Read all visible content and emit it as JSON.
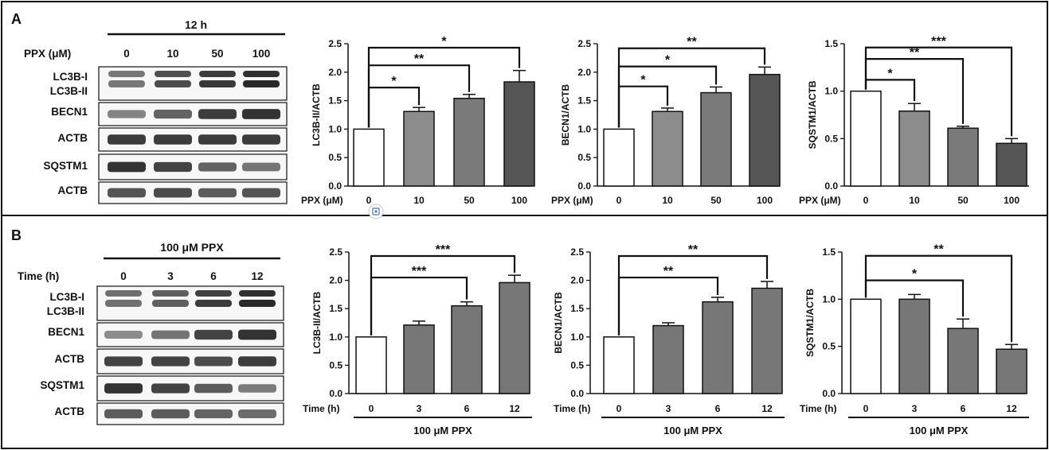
{
  "panels": [
    {
      "letter": "A",
      "header": "12 h",
      "row_title": "PPX (μM)",
      "lanes": [
        "0",
        "10",
        "50",
        "100"
      ],
      "blots": [
        {
          "label1": "LC3B-I",
          "label2": "LC3B-II",
          "kind": "lc3",
          "intensity": [
            0.55,
            0.8,
            0.92,
            1.0
          ]
        },
        {
          "label1": "BECN1",
          "kind": "single",
          "intensity": [
            0.45,
            0.65,
            0.9,
            0.95
          ]
        },
        {
          "label1": "ACTB",
          "kind": "single",
          "intensity": [
            0.9,
            0.9,
            0.9,
            0.9
          ]
        },
        {
          "label1": "SQSTM1",
          "kind": "single",
          "intensity": [
            0.95,
            0.85,
            0.65,
            0.55
          ]
        },
        {
          "label1": "ACTB",
          "kind": "single",
          "intensity": [
            0.75,
            0.8,
            0.7,
            0.75
          ]
        }
      ]
    },
    {
      "letter": "B",
      "header": "100 μM  PPX",
      "row_title": "Time (h)",
      "lanes": [
        "0",
        "3",
        "6",
        "12"
      ],
      "blots": [
        {
          "label1": "LC3B-I",
          "label2": "LC3B-II",
          "kind": "lc3",
          "intensity": [
            0.6,
            0.7,
            0.9,
            1.0
          ]
        },
        {
          "label1": "BECN1",
          "kind": "single",
          "intensity": [
            0.4,
            0.55,
            0.85,
            0.95
          ]
        },
        {
          "label1": "ACTB",
          "kind": "single",
          "intensity": [
            0.85,
            0.85,
            0.8,
            0.9
          ]
        },
        {
          "label1": "SQSTM1",
          "kind": "single",
          "intensity": [
            0.95,
            0.85,
            0.7,
            0.5
          ]
        },
        {
          "label1": "ACTB",
          "kind": "single",
          "intensity": [
            0.7,
            0.7,
            0.65,
            0.6
          ]
        }
      ]
    }
  ],
  "chart_data": [
    {
      "type": "bar",
      "panel": "A",
      "ylabel": "LC3B-II/ACTB",
      "xlabel_prefix": "PPX (μM)",
      "categories": [
        "0",
        "10",
        "50",
        "100"
      ],
      "values": [
        1.0,
        1.31,
        1.54,
        1.83
      ],
      "errors": [
        0,
        0.07,
        0.07,
        0.2
      ],
      "ylim": [
        0,
        2.5
      ],
      "yticks": [
        "0.0",
        "0.5",
        "1.0",
        "1.5",
        "2.0",
        "2.5"
      ],
      "bracket_label": "",
      "significance": [
        {
          "to": 1,
          "label": "*",
          "y": 1.73
        },
        {
          "to": 2,
          "label": "**",
          "y": 2.12
        },
        {
          "to": 3,
          "label": "*",
          "y": 2.43
        }
      ]
    },
    {
      "type": "bar",
      "panel": "A",
      "ylabel": "BECN1/ACTB",
      "xlabel_prefix": "PPX (μM)",
      "categories": [
        "0",
        "10",
        "50",
        "100"
      ],
      "values": [
        1.0,
        1.31,
        1.64,
        1.96
      ],
      "errors": [
        0,
        0.06,
        0.1,
        0.13
      ],
      "ylim": [
        0,
        2.5
      ],
      "yticks": [
        "0.0",
        "0.5",
        "1.0",
        "1.5",
        "2.0",
        "2.5"
      ],
      "bracket_label": "",
      "significance": [
        {
          "to": 1,
          "label": "*",
          "y": 1.75
        },
        {
          "to": 2,
          "label": "*",
          "y": 2.1
        },
        {
          "to": 3,
          "label": "**",
          "y": 2.42
        }
      ]
    },
    {
      "type": "bar",
      "panel": "A",
      "ylabel": "SQSTM1/ACTB",
      "xlabel_prefix": "PPX (μM)",
      "categories": [
        "0",
        "10",
        "50",
        "100"
      ],
      "values": [
        1.0,
        0.79,
        0.61,
        0.45
      ],
      "errors": [
        0,
        0.08,
        0.02,
        0.05
      ],
      "ylim": [
        0,
        1.5
      ],
      "yticks": [
        "0.0",
        "0.5",
        "1.0",
        "1.5"
      ],
      "bracket_label": "",
      "significance": [
        {
          "to": 1,
          "label": "*",
          "y": 1.12
        },
        {
          "to": 2,
          "label": "**",
          "y": 1.34
        },
        {
          "to": 3,
          "label": "***",
          "y": 1.46
        }
      ]
    },
    {
      "type": "bar",
      "panel": "B",
      "ylabel": "LC3B-II/ACTB",
      "xlabel_prefix": "Time (h)",
      "categories": [
        "0",
        "3",
        "6",
        "12"
      ],
      "values": [
        1.0,
        1.21,
        1.55,
        1.96
      ],
      "errors": [
        0,
        0.07,
        0.07,
        0.13
      ],
      "ylim": [
        0,
        2.5
      ],
      "yticks": [
        "0.0",
        "0.5",
        "1.0",
        "1.5",
        "2.0",
        "2.5"
      ],
      "bracket_label": "100 μM  PPX",
      "significance": [
        {
          "to": 2,
          "label": "***",
          "y": 2.05
        },
        {
          "to": 3,
          "label": "***",
          "y": 2.43
        }
      ]
    },
    {
      "type": "bar",
      "panel": "B",
      "ylabel": "BECN1/ACTB",
      "xlabel_prefix": "Time (h)",
      "categories": [
        "0",
        "3",
        "6",
        "12"
      ],
      "values": [
        1.0,
        1.2,
        1.62,
        1.86
      ],
      "errors": [
        0,
        0.05,
        0.08,
        0.12
      ],
      "ylim": [
        0,
        2.5
      ],
      "yticks": [
        "0.0",
        "0.5",
        "1.0",
        "1.5",
        "2.0",
        "2.5"
      ],
      "bracket_label": "100 μM  PPX",
      "significance": [
        {
          "to": 2,
          "label": "**",
          "y": 2.05
        },
        {
          "to": 3,
          "label": "**",
          "y": 2.43
        }
      ]
    },
    {
      "type": "bar",
      "panel": "B",
      "ylabel": "SQSTM1/ACTB",
      "xlabel_prefix": "Time (h)",
      "categories": [
        "0",
        "3",
        "6",
        "12"
      ],
      "values": [
        1.0,
        1.0,
        0.69,
        0.47
      ],
      "errors": [
        0,
        0.05,
        0.1,
        0.05
      ],
      "ylim": [
        0,
        1.5
      ],
      "yticks": [
        "0.0",
        "0.5",
        "1.0",
        "1.5"
      ],
      "bracket_label": "100 μM  PPX",
      "significance": [
        {
          "to": 2,
          "label": "*",
          "y": 1.2
        },
        {
          "to": 3,
          "label": "**",
          "y": 1.46
        }
      ]
    }
  ],
  "colors": {
    "bar_fills": [
      "#ffffff",
      "#8c8c8c",
      "#7a7a7a",
      "#555555"
    ],
    "bar_fills_B": [
      "#ffffff",
      "#777777",
      "#777777",
      "#777777"
    ],
    "ink": "#111111",
    "band": "#1a1a1a"
  }
}
